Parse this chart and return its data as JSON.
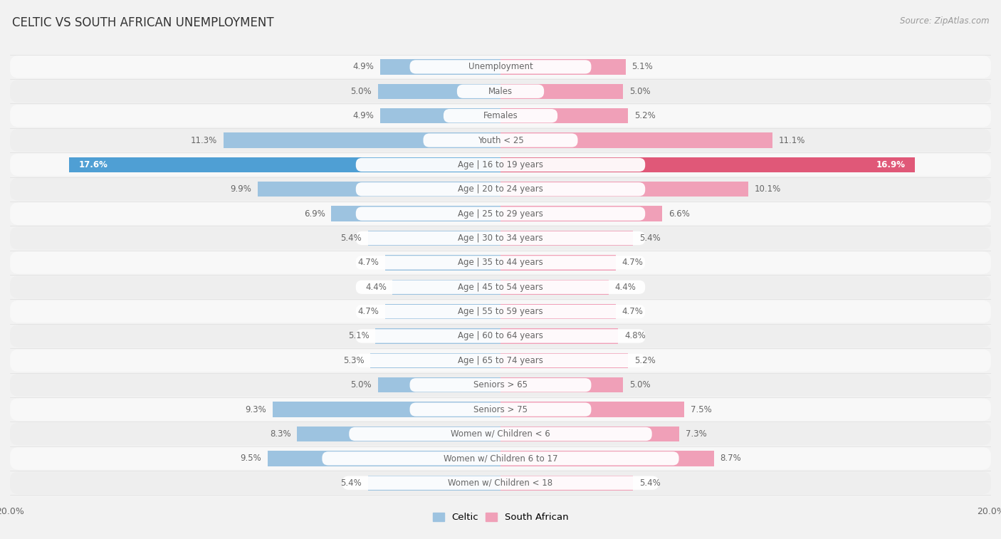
{
  "title": "CELTIC VS SOUTH AFRICAN UNEMPLOYMENT",
  "source": "Source: ZipAtlas.com",
  "categories": [
    "Unemployment",
    "Males",
    "Females",
    "Youth < 25",
    "Age | 16 to 19 years",
    "Age | 20 to 24 years",
    "Age | 25 to 29 years",
    "Age | 30 to 34 years",
    "Age | 35 to 44 years",
    "Age | 45 to 54 years",
    "Age | 55 to 59 years",
    "Age | 60 to 64 years",
    "Age | 65 to 74 years",
    "Seniors > 65",
    "Seniors > 75",
    "Women w/ Children < 6",
    "Women w/ Children 6 to 17",
    "Women w/ Children < 18"
  ],
  "celtic": [
    4.9,
    5.0,
    4.9,
    11.3,
    17.6,
    9.9,
    6.9,
    5.4,
    4.7,
    4.4,
    4.7,
    5.1,
    5.3,
    5.0,
    9.3,
    8.3,
    9.5,
    5.4
  ],
  "south_african": [
    5.1,
    5.0,
    5.2,
    11.1,
    16.9,
    10.1,
    6.6,
    5.4,
    4.7,
    4.4,
    4.7,
    4.8,
    5.2,
    5.0,
    7.5,
    7.3,
    8.7,
    5.4
  ],
  "celtic_color": "#9dc3e0",
  "south_african_color": "#f0a0b8",
  "celtic_highlight_color": "#4f9fd4",
  "south_african_highlight_color": "#e05878",
  "highlight_row": 4,
  "max_val": 20.0,
  "row_bg_light": "#f5f5f5",
  "row_bg_dark": "#e8e8e8",
  "label_color": "#666666",
  "title_color": "#333333",
  "legend_celtic": "Celtic",
  "legend_south_african": "South African",
  "value_label_highlight_color": "#ffffff"
}
